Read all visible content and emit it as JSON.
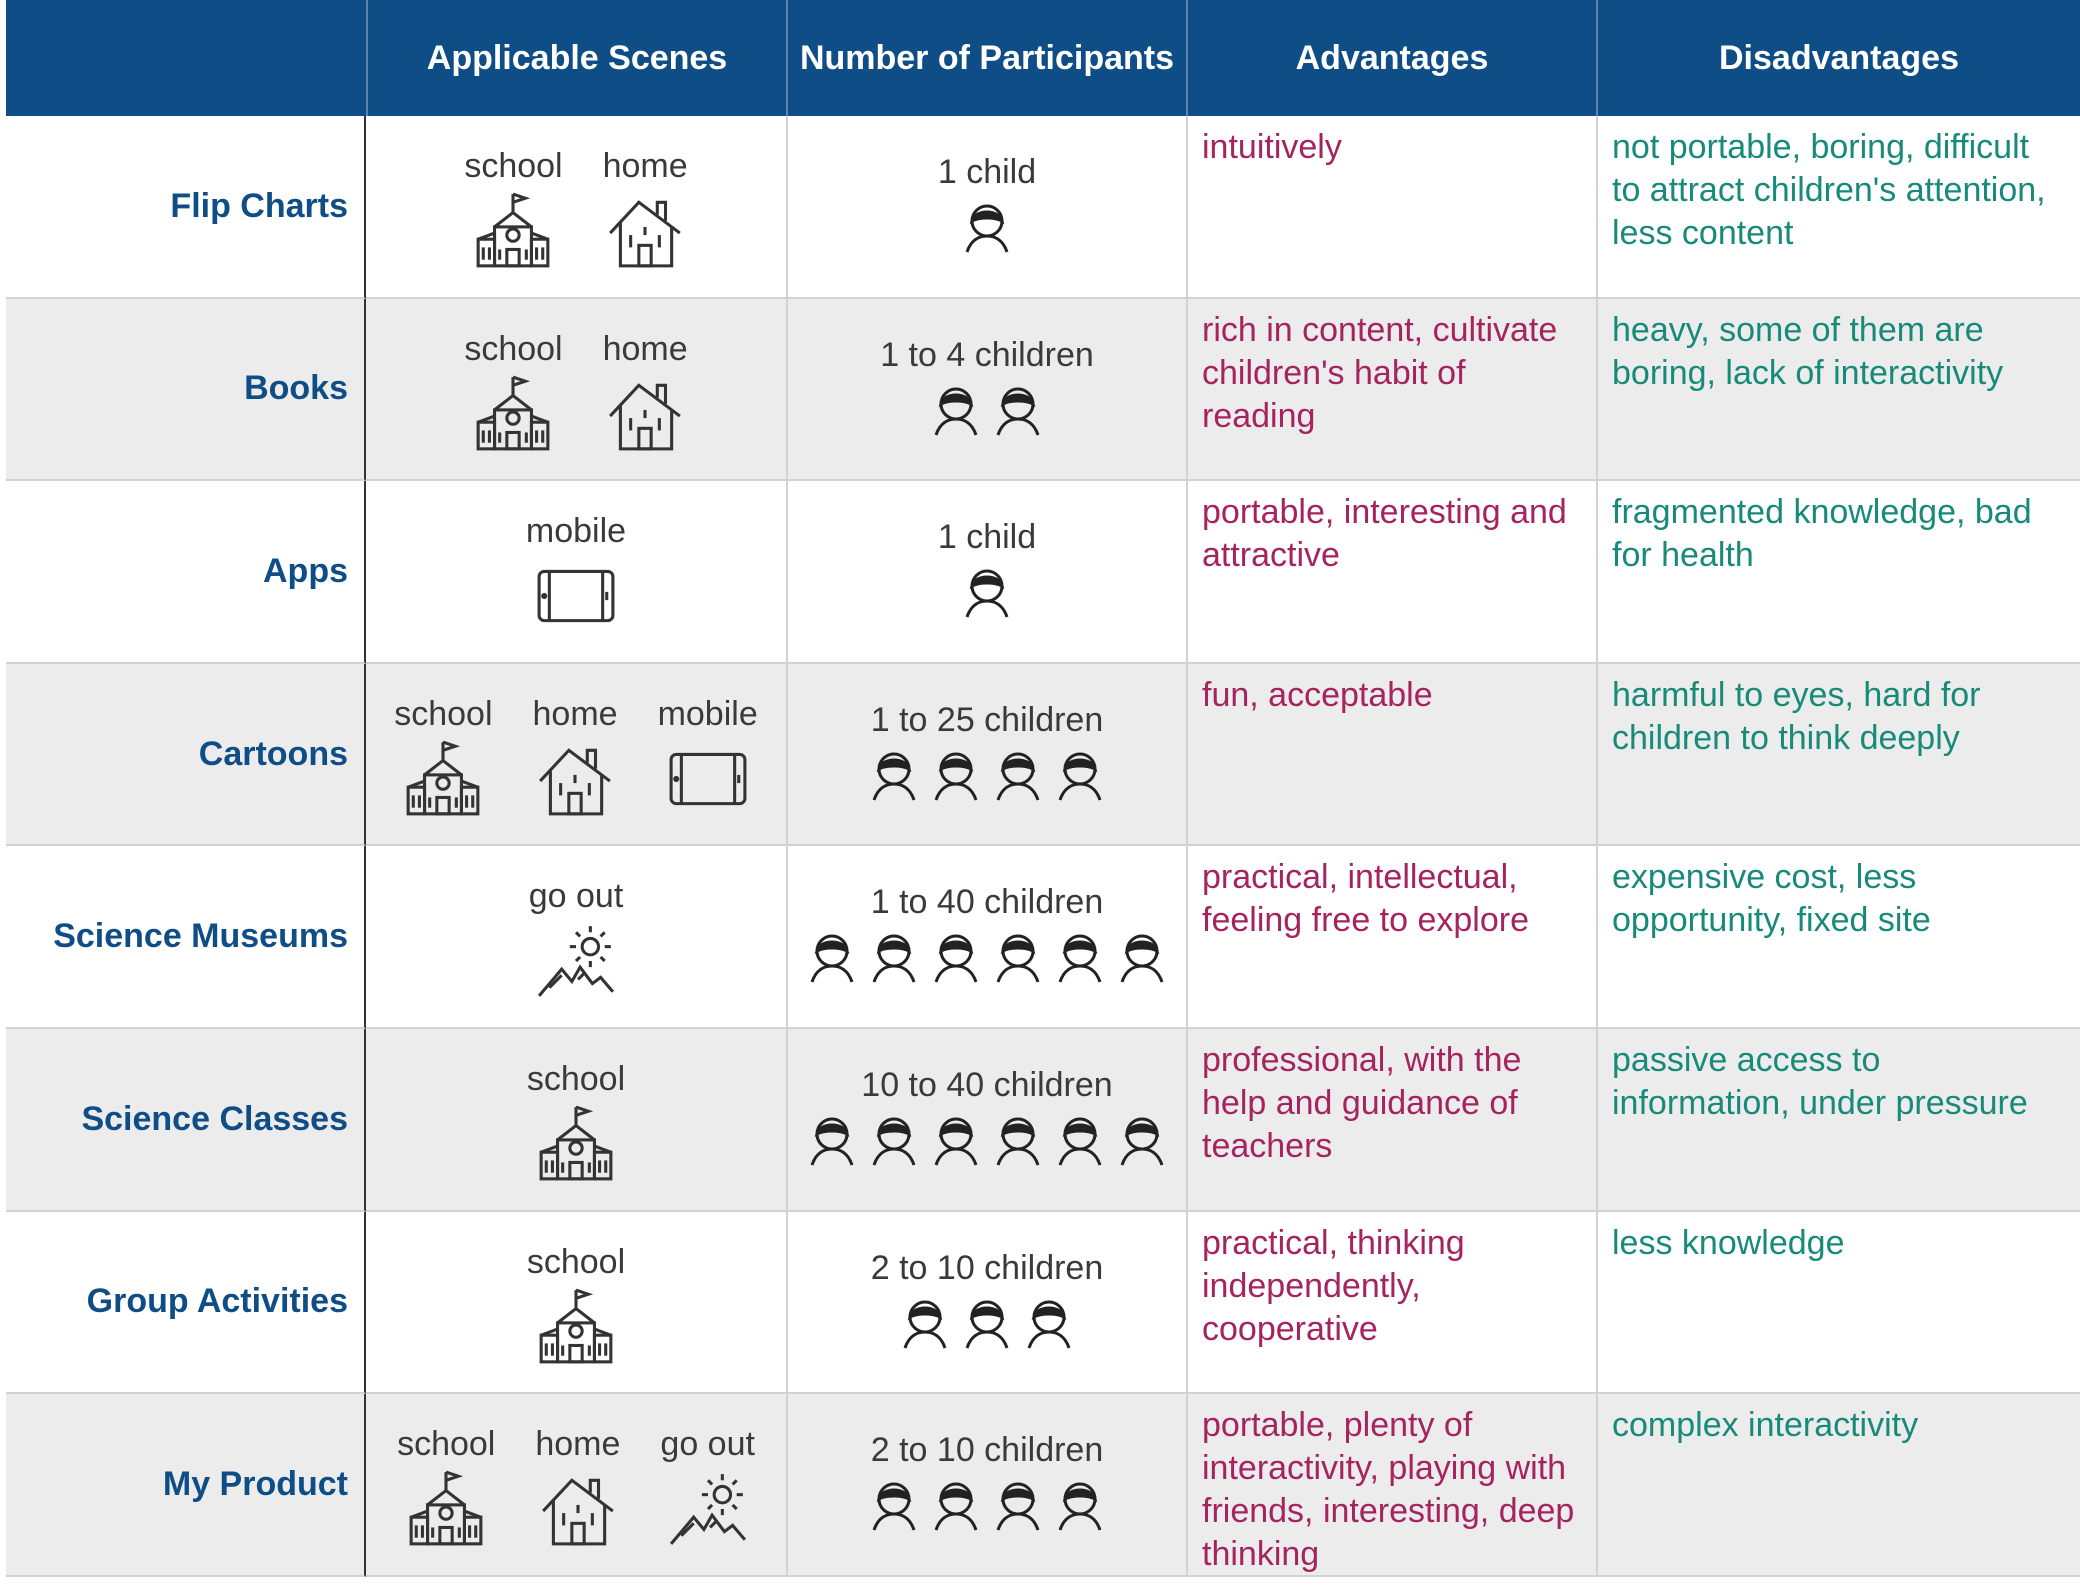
{
  "header": {
    "col0": "",
    "col1": "Applicable Scenes",
    "col2": "Number of Participants",
    "col3": "Advantages",
    "col4": "Disadvantages"
  },
  "rows": [
    {
      "label": "Flip Charts",
      "scenes": [
        {
          "label": "school",
          "icon": "school-icon"
        },
        {
          "label": "home",
          "icon": "home-icon"
        }
      ],
      "participants": "1 child",
      "kid_count": 1,
      "advantages": "intuitively",
      "disadvantages": "not portable, boring, difficult to attract children's attention, less content"
    },
    {
      "label": "Books",
      "scenes": [
        {
          "label": "school",
          "icon": "school-icon"
        },
        {
          "label": "home",
          "icon": "home-icon"
        }
      ],
      "participants": "1 to 4 children",
      "kid_count": 2,
      "advantages": "rich in content, cultivate children's habit of reading",
      "disadvantages": "heavy, some of them are boring, lack of interactivity"
    },
    {
      "label": "Apps",
      "scenes": [
        {
          "label": "mobile",
          "icon": "mobile-icon"
        }
      ],
      "participants": "1 child",
      "kid_count": 1,
      "advantages": "portable, interesting and attractive",
      "disadvantages": "fragmented knowledge, bad for health"
    },
    {
      "label": "Cartoons",
      "scenes": [
        {
          "label": "school",
          "icon": "school-icon"
        },
        {
          "label": "home",
          "icon": "home-icon"
        },
        {
          "label": "mobile",
          "icon": "mobile-icon"
        }
      ],
      "participants": "1 to 25 children",
      "kid_count": 4,
      "advantages": "fun, acceptable",
      "disadvantages": "harmful to eyes, hard for children to think deeply"
    },
    {
      "label": "Science Museums",
      "scenes": [
        {
          "label": "go out",
          "icon": "outdoor-icon"
        }
      ],
      "participants": "1 to 40 children",
      "kid_count": 6,
      "advantages": "practical, intellectual, feeling free to explore",
      "disadvantages": "expensive cost, less opportunity, fixed site"
    },
    {
      "label": "Science Classes",
      "scenes": [
        {
          "label": "school",
          "icon": "school-icon"
        }
      ],
      "participants": "10 to 40 children",
      "kid_count": 6,
      "advantages": "professional, with the help and guidance of teachers",
      "disadvantages": "passive access to information, under pressure"
    },
    {
      "label": "Group Activities",
      "scenes": [
        {
          "label": "school",
          "icon": "school-icon"
        }
      ],
      "participants": "2 to 10 children",
      "kid_count": 3,
      "advantages": "practical, thinking independently, cooperative",
      "disadvantages": "less knowledge"
    },
    {
      "label": "My Product",
      "scenes": [
        {
          "label": "school",
          "icon": "school-icon"
        },
        {
          "label": "home",
          "icon": "home-icon"
        },
        {
          "label": "go out",
          "icon": "outdoor-icon"
        }
      ],
      "participants": "2 to 10 children",
      "kid_count": 4,
      "advantages": "portable, plenty of interactivity, playing with friends, interesting, deep thinking",
      "disadvantages": "complex interactivity"
    }
  ],
  "colors": {
    "header_bg": "#0e4d86",
    "row_label": "#0e4d86",
    "advantages": "#a5245f",
    "disadvantages": "#178a7a",
    "alt_row": "#ececec"
  }
}
